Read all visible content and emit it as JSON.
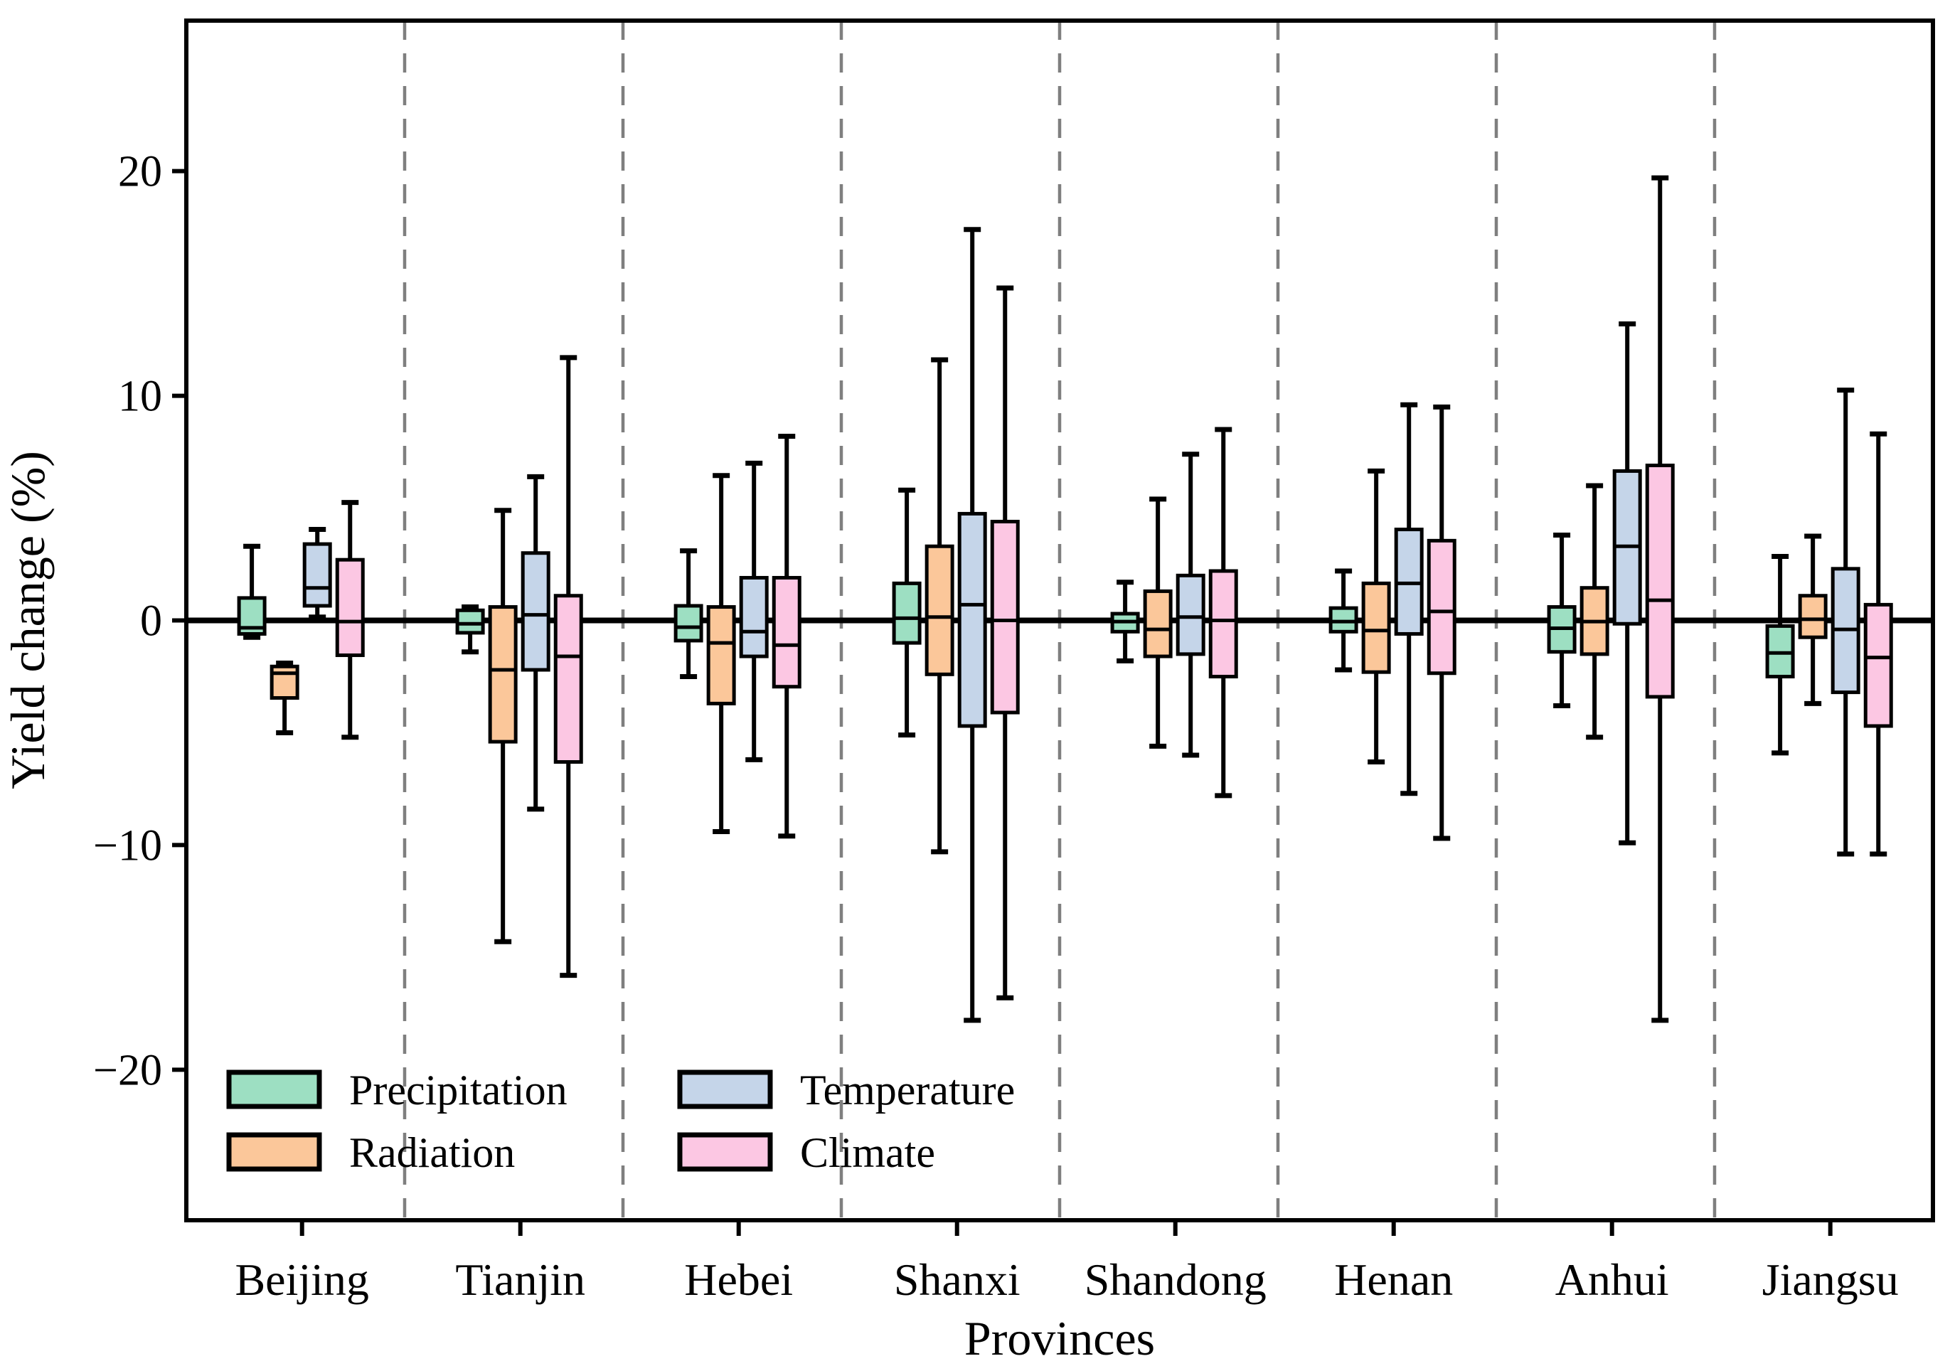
{
  "chart_data": {
    "type": "box",
    "title": "",
    "xlabel": "Provinces",
    "ylabel": "Yield change (%)",
    "ylim": [
      -26.7,
      26.7
    ],
    "yticks": [
      -20,
      -10,
      0,
      10,
      20
    ],
    "ytick_labels": [
      "−20",
      "−10",
      "0",
      "10",
      "20"
    ],
    "grid": "vertical-dashed-separators",
    "zero_line": true,
    "legend_position": "lower-left, 2 columns",
    "categories": [
      "Beijing",
      "Tianjin",
      "Hebei",
      "Shanxi",
      "Shandong",
      "Henan",
      "Anhui",
      "Jiangsu"
    ],
    "box_stat_order": [
      "whisker_low",
      "q1",
      "median",
      "q3",
      "whisker_high"
    ],
    "series": [
      {
        "name": "Precipitation",
        "color": "#9ddfc2",
        "boxes": [
          [
            -0.75,
            -0.6,
            -0.33,
            1.0,
            3.3
          ],
          [
            -1.4,
            -0.55,
            -0.15,
            0.45,
            0.6
          ],
          [
            -2.5,
            -0.9,
            -0.3,
            0.65,
            3.1
          ],
          [
            -5.1,
            -1.0,
            0.1,
            1.65,
            5.8
          ],
          [
            -1.8,
            -0.5,
            -0.05,
            0.3,
            1.7
          ],
          [
            -2.2,
            -0.5,
            -0.05,
            0.55,
            2.2
          ],
          [
            -3.8,
            -1.4,
            -0.35,
            0.6,
            3.8
          ],
          [
            -5.9,
            -2.5,
            -1.45,
            -0.25,
            2.85
          ]
        ]
      },
      {
        "name": "Radiation",
        "color": "#fbc79a",
        "boxes": [
          [
            -5.0,
            -3.45,
            -2.35,
            -2.05,
            -1.9
          ],
          [
            -14.3,
            -5.4,
            -2.2,
            0.6,
            4.9
          ],
          [
            -9.4,
            -3.7,
            -1.0,
            0.6,
            6.45
          ],
          [
            -10.3,
            -2.4,
            0.15,
            3.3,
            11.6
          ],
          [
            -5.6,
            -1.6,
            -0.4,
            1.3,
            5.4
          ],
          [
            -6.3,
            -2.3,
            -0.45,
            1.65,
            6.65
          ],
          [
            -5.2,
            -1.5,
            -0.05,
            1.45,
            6.0
          ],
          [
            -3.7,
            -0.75,
            0.05,
            1.1,
            3.75
          ]
        ]
      },
      {
        "name": "Temperature",
        "color": "#c5d5e9",
        "boxes": [
          [
            0.15,
            0.65,
            1.45,
            3.4,
            4.05
          ],
          [
            -8.4,
            -2.2,
            0.25,
            3.0,
            6.4
          ],
          [
            -6.2,
            -1.6,
            -0.5,
            1.9,
            7.0
          ],
          [
            -17.8,
            -4.7,
            0.7,
            4.75,
            17.4
          ],
          [
            -6.0,
            -1.5,
            0.15,
            2.0,
            7.4
          ],
          [
            -7.7,
            -0.6,
            1.65,
            4.05,
            9.6
          ],
          [
            -9.9,
            -0.15,
            3.3,
            6.65,
            13.2
          ],
          [
            -10.4,
            -3.2,
            -0.4,
            2.3,
            10.25
          ]
        ]
      },
      {
        "name": "Climate",
        "color": "#fcc7e3",
        "boxes": [
          [
            -5.2,
            -1.55,
            -0.05,
            2.7,
            5.25
          ],
          [
            -15.8,
            -6.3,
            -1.6,
            1.1,
            11.7
          ],
          [
            -9.6,
            -2.95,
            -1.1,
            1.9,
            8.2
          ],
          [
            -16.8,
            -4.1,
            0.0,
            4.4,
            14.8
          ],
          [
            -7.8,
            -2.5,
            0.0,
            2.2,
            8.5
          ],
          [
            -9.7,
            -2.35,
            0.4,
            3.55,
            9.5
          ],
          [
            -17.8,
            -3.4,
            0.9,
            6.9,
            19.7
          ],
          [
            -10.4,
            -4.7,
            -1.65,
            0.7,
            8.3
          ]
        ]
      }
    ],
    "colors": {
      "box_edge": "#000000",
      "median_line": "#000000",
      "zero_line": "#000000",
      "separator": "#7f7f7f",
      "axis": "#000000",
      "background": "#ffffff"
    }
  }
}
